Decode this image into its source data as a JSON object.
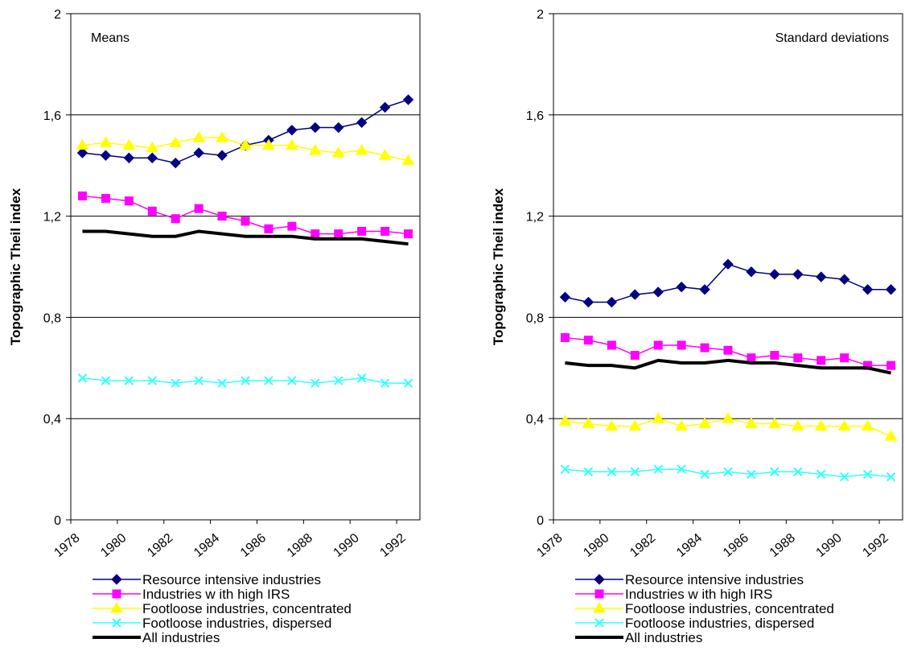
{
  "chart_data": [
    {
      "type": "line",
      "title": "Means",
      "ylabel": "Topographic Theil index",
      "xlabel": "",
      "ylim": [
        0,
        2
      ],
      "yticks": [
        "0",
        "0,4",
        "0,8",
        "1,2",
        "1,6",
        "2"
      ],
      "xlim": [
        1978,
        1993
      ],
      "xticks": [
        "1978",
        "1980",
        "1982",
        "1984",
        "1986",
        "1988",
        "1990",
        "1992"
      ],
      "grid": "horizontal",
      "legend_position": "bottom",
      "x": [
        1978.5,
        1979.5,
        1980.5,
        1981.5,
        1982.5,
        1983.5,
        1984.5,
        1985.5,
        1986.5,
        1987.5,
        1988.5,
        1989.5,
        1990.5,
        1991.5,
        1992.5
      ],
      "series": [
        {
          "name": "Resource intensive industries",
          "color": "#000080",
          "marker": "diamond",
          "values": [
            1.45,
            1.44,
            1.43,
            1.43,
            1.41,
            1.45,
            1.44,
            1.48,
            1.5,
            1.54,
            1.55,
            1.55,
            1.57,
            1.63,
            1.66
          ]
        },
        {
          "name": "Industries w ith high IRS",
          "color": "#ff00ff",
          "marker": "square",
          "values": [
            1.28,
            1.27,
            1.26,
            1.22,
            1.19,
            1.23,
            1.2,
            1.18,
            1.15,
            1.16,
            1.13,
            1.13,
            1.14,
            1.14,
            1.13
          ]
        },
        {
          "name": "Footloose industries, concentrated",
          "color": "#ffff00",
          "marker": "triangle",
          "values": [
            1.48,
            1.49,
            1.48,
            1.47,
            1.49,
            1.51,
            1.51,
            1.48,
            1.48,
            1.48,
            1.46,
            1.45,
            1.46,
            1.44,
            1.42
          ]
        },
        {
          "name": "Footloose industries, dispersed",
          "color": "#33ffff",
          "marker": "x",
          "values": [
            0.56,
            0.55,
            0.55,
            0.55,
            0.54,
            0.55,
            0.54,
            0.55,
            0.55,
            0.55,
            0.54,
            0.55,
            0.56,
            0.54,
            0.54
          ]
        },
        {
          "name": "All industries",
          "color": "#000000",
          "marker": "none",
          "thick": true,
          "values": [
            1.14,
            1.14,
            1.13,
            1.12,
            1.12,
            1.14,
            1.13,
            1.12,
            1.12,
            1.12,
            1.11,
            1.11,
            1.11,
            1.1,
            1.09
          ]
        }
      ]
    },
    {
      "type": "line",
      "title": "Standard deviations",
      "ylabel": "Topographic Theil index",
      "xlabel": "",
      "ylim": [
        0,
        2
      ],
      "yticks": [
        "0",
        "0,4",
        "0,8",
        "1,2",
        "1,6",
        "2"
      ],
      "xlim": [
        1978,
        1993
      ],
      "xticks": [
        "1978",
        "1980",
        "1982",
        "1984",
        "1986",
        "1988",
        "1990",
        "1992"
      ],
      "grid": "horizontal",
      "legend_position": "bottom",
      "x": [
        1978.5,
        1979.5,
        1980.5,
        1981.5,
        1982.5,
        1983.5,
        1984.5,
        1985.5,
        1986.5,
        1987.5,
        1988.5,
        1989.5,
        1990.5,
        1991.5,
        1992.5
      ],
      "series": [
        {
          "name": "Resource intensive industries",
          "color": "#000080",
          "marker": "diamond",
          "values": [
            0.88,
            0.86,
            0.86,
            0.89,
            0.9,
            0.92,
            0.91,
            1.01,
            0.98,
            0.97,
            0.97,
            0.96,
            0.95,
            0.91,
            0.91
          ]
        },
        {
          "name": "Industries w ith high IRS",
          "color": "#ff00ff",
          "marker": "square",
          "values": [
            0.72,
            0.71,
            0.69,
            0.65,
            0.69,
            0.69,
            0.68,
            0.67,
            0.64,
            0.65,
            0.64,
            0.63,
            0.64,
            0.61,
            0.61
          ]
        },
        {
          "name": "Footloose industries, concentrated",
          "color": "#ffff00",
          "marker": "triangle",
          "values": [
            0.39,
            0.38,
            0.37,
            0.37,
            0.4,
            0.37,
            0.38,
            0.4,
            0.38,
            0.38,
            0.37,
            0.37,
            0.37,
            0.37,
            0.33
          ]
        },
        {
          "name": "Footloose industries, dispersed",
          "color": "#33ffff",
          "marker": "x",
          "values": [
            0.2,
            0.19,
            0.19,
            0.19,
            0.2,
            0.2,
            0.18,
            0.19,
            0.18,
            0.19,
            0.19,
            0.18,
            0.17,
            0.18,
            0.17
          ]
        },
        {
          "name": "All industries",
          "color": "#000000",
          "marker": "none",
          "thick": true,
          "values": [
            0.62,
            0.61,
            0.61,
            0.6,
            0.63,
            0.62,
            0.62,
            0.63,
            0.62,
            0.62,
            0.61,
            0.6,
            0.6,
            0.6,
            0.58
          ]
        }
      ]
    }
  ]
}
